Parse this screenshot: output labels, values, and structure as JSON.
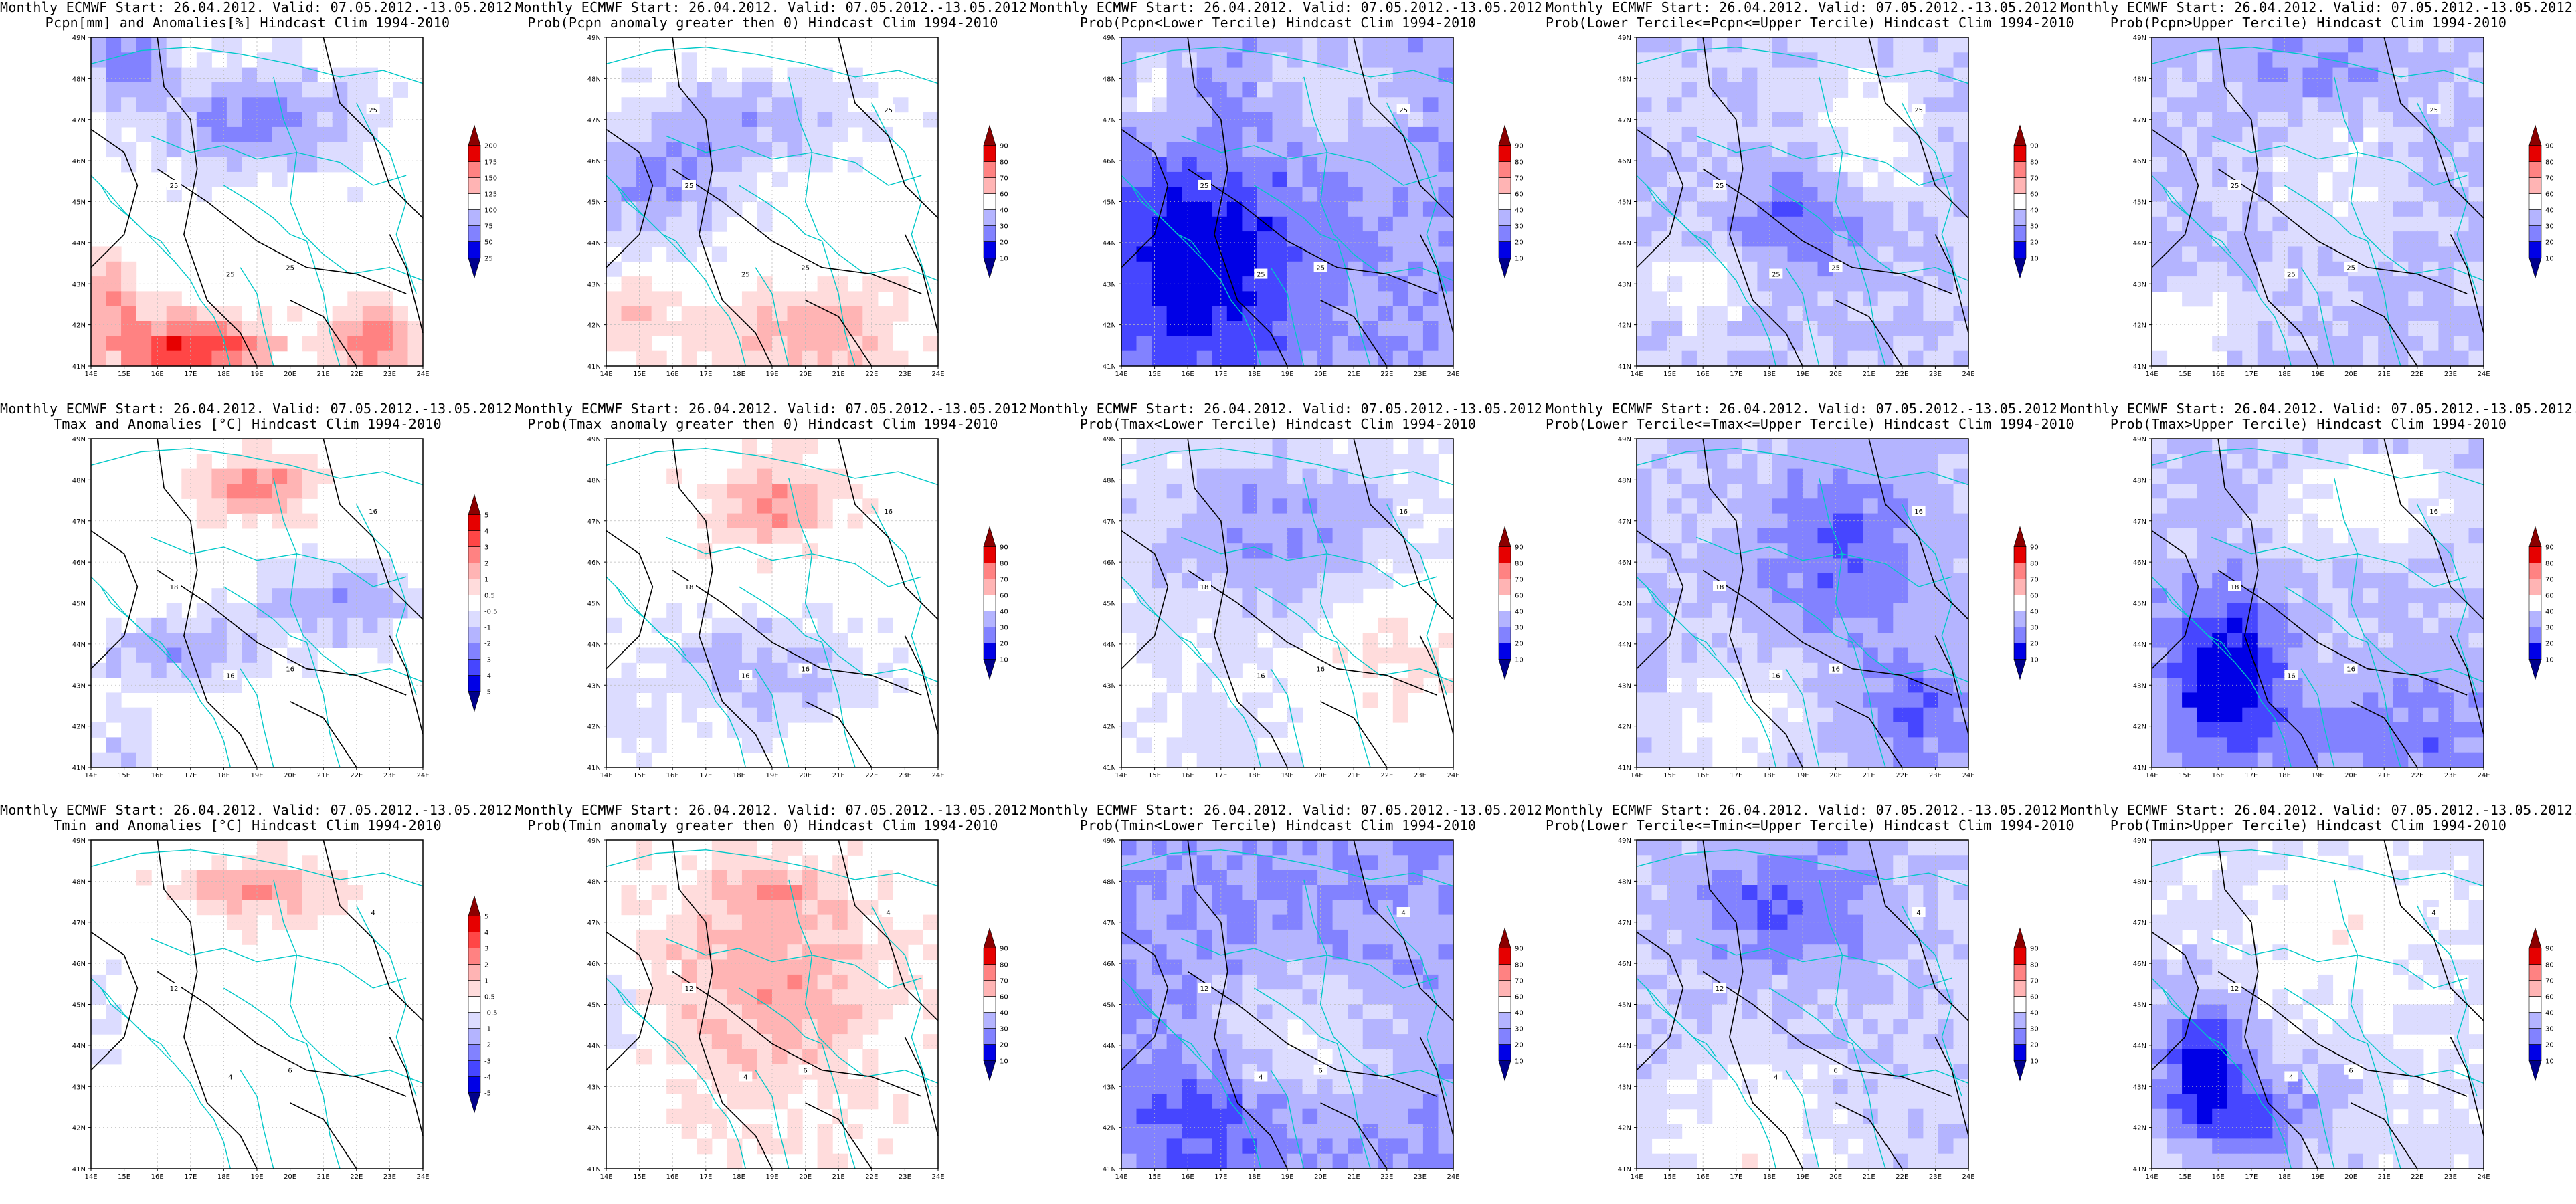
{
  "figure": {
    "x_ticks": [
      "14E",
      "15E",
      "16E",
      "17E",
      "18E",
      "19E",
      "20E",
      "21E",
      "22E",
      "23E",
      "24E"
    ],
    "y_ticks": [
      "41N",
      "42N",
      "43N",
      "44N",
      "45N",
      "46N",
      "47N",
      "48N",
      "49N"
    ],
    "colors": {
      "neg": [
        "#00008b",
        "#0000e6",
        "#4646ff",
        "#8282ff",
        "#b4b4ff",
        "#dcdcff"
      ],
      "pos": [
        "#ffdcdc",
        "#ffb4b4",
        "#ff8282",
        "#ff4646",
        "#e60000",
        "#8b0000"
      ],
      "coast": "#00c8c8",
      "contour": "#000000"
    }
  },
  "panels": [
    {
      "line1": "Monthly ECMWF Start: 26.04.2012. Valid: 07.05.2012.-13.05.2012.",
      "line2": "Pcpn[mm] and Anomalies[%] Hindcast Clim 1994-2010",
      "cb_labels": [
        "25",
        "50",
        "75",
        "100",
        "125",
        "150",
        "175",
        "200"
      ],
      "pattern": "precip-anom",
      "contour_labels": [
        "25",
        "25",
        "25",
        "25"
      ]
    },
    {
      "line1": "Monthly ECMWF Start: 26.04.2012. Valid: 07.05.2012.-13.05.2012.",
      "line2": "Prob(Pcpn anomaly greater then 0) Hindcast Clim 1994-2010",
      "cb_labels": [
        "10",
        "20",
        "30",
        "40",
        "60",
        "70",
        "80",
        "90"
      ],
      "pattern": "precip-pos",
      "contour_labels": [
        "25",
        "25",
        "25",
        "25"
      ]
    },
    {
      "line1": "Monthly ECMWF Start: 26.04.2012. Valid: 07.05.2012.-13.05.2012.",
      "line2": "Prob(Pcpn<Lower Tercile) Hindcast Clim 1994-2010",
      "cb_labels": [
        "10",
        "20",
        "30",
        "40",
        "60",
        "70",
        "80",
        "90"
      ],
      "pattern": "precip-lower",
      "contour_labels": [
        "25",
        "25",
        "25",
        "25"
      ]
    },
    {
      "line1": "Monthly ECMWF Start: 26.04.2012. Valid: 07.05.2012.-13.05.2012.",
      "line2": "Prob(Lower Tercile<=Pcpn<=Upper Tercile) Hindcast Clim 1994-2010",
      "cb_labels": [
        "10",
        "20",
        "30",
        "40",
        "60",
        "70",
        "80",
        "90"
      ],
      "pattern": "precip-mid",
      "contour_labels": [
        "25",
        "25",
        "25",
        "25"
      ]
    },
    {
      "line1": "Monthly ECMWF Start: 26.04.2012. Valid: 07.05.2012.-13.05.2012.",
      "line2": "Prob(Pcpn>Upper Tercile) Hindcast Clim 1994-2010",
      "cb_labels": [
        "10",
        "20",
        "30",
        "40",
        "60",
        "70",
        "80",
        "90"
      ],
      "pattern": "precip-upper",
      "contour_labels": [
        "25",
        "25",
        "25",
        "25"
      ]
    },
    {
      "line1": "Monthly ECMWF Start: 26.04.2012. Valid: 07.05.2012.-13.05.2012.",
      "line2": "Tmax and Anomalies [°C] Hindcast Clim 1994-2010",
      "cb_labels": [
        "-5",
        "-4",
        "-3",
        "-2",
        "-1",
        "-0.5",
        "0.5",
        "1",
        "2",
        "3",
        "4",
        "5"
      ],
      "pattern": "tmax-anom",
      "contour_labels": [
        "16",
        "16",
        "16",
        "18"
      ]
    },
    {
      "line1": "Monthly ECMWF Start: 26.04.2012. Valid: 07.05.2012.-13.05.2012.",
      "line2": "Prob(Tmax anomaly greater then 0) Hindcast Clim 1994-2010",
      "cb_labels": [
        "10",
        "20",
        "30",
        "40",
        "60",
        "70",
        "80",
        "90"
      ],
      "pattern": "tmax-pos",
      "contour_labels": [
        "16",
        "16",
        "16",
        "18"
      ]
    },
    {
      "line1": "Monthly ECMWF Start: 26.04.2012. Valid: 07.05.2012.-13.05.2012.",
      "line2": "Prob(Tmax<Lower Tercile) Hindcast Clim 1994-2010",
      "cb_labels": [
        "10",
        "20",
        "30",
        "40",
        "60",
        "70",
        "80",
        "90"
      ],
      "pattern": "tmax-lower",
      "contour_labels": [
        "16",
        "16",
        "16",
        "18"
      ]
    },
    {
      "line1": "Monthly ECMWF Start: 26.04.2012. Valid: 07.05.2012.-13.05.2012.",
      "line2": "Prob(Lower Tercile<=Tmax<=Upper Tercile) Hindcast Clim 1994-2010",
      "cb_labels": [
        "10",
        "20",
        "30",
        "40",
        "60",
        "70",
        "80",
        "90"
      ],
      "pattern": "tmax-mid",
      "contour_labels": [
        "16",
        "16",
        "16",
        "18"
      ]
    },
    {
      "line1": "Monthly ECMWF Start: 26.04.2012. Valid: 07.05.2012.-13.05.2012.",
      "line2": "Prob(Tmax>Upper Tercile) Hindcast Clim 1994-2010",
      "cb_labels": [
        "10",
        "20",
        "30",
        "40",
        "60",
        "70",
        "80",
        "90"
      ],
      "pattern": "tmax-upper",
      "contour_labels": [
        "16",
        "16",
        "16",
        "18"
      ]
    },
    {
      "line1": "Monthly ECMWF Start: 26.04.2012. Valid: 07.05.2012.-13.05.2012.",
      "line2": "Tmin and Anomalies [°C] Hindcast Clim 1994-2010",
      "cb_labels": [
        "-5",
        "-4",
        "-3",
        "-2",
        "-1",
        "-0.5",
        "0.5",
        "1",
        "2",
        "3",
        "4",
        "5"
      ],
      "pattern": "tmin-anom",
      "contour_labels": [
        "4",
        "4",
        "6",
        "12"
      ]
    },
    {
      "line1": "Monthly ECMWF Start: 26.04.2012. Valid: 07.05.2012.-13.05.2012.",
      "line2": "Prob(Tmin anomaly greater then 0) Hindcast Clim 1994-2010",
      "cb_labels": [
        "10",
        "20",
        "30",
        "40",
        "60",
        "70",
        "80",
        "90"
      ],
      "pattern": "tmin-pos",
      "contour_labels": [
        "4",
        "4",
        "6",
        "12"
      ]
    },
    {
      "line1": "Monthly ECMWF Start: 26.04.2012. Valid: 07.05.2012.-13.05.2012.",
      "line2": "Prob(Tmin<Lower Tercile) Hindcast Clim 1994-2010",
      "cb_labels": [
        "10",
        "20",
        "30",
        "40",
        "60",
        "70",
        "80",
        "90"
      ],
      "pattern": "tmin-lower",
      "contour_labels": [
        "4",
        "4",
        "6",
        "12"
      ]
    },
    {
      "line1": "Monthly ECMWF Start: 26.04.2012. Valid: 07.05.2012.-13.05.2012.",
      "line2": "Prob(Lower Tercile<=Tmin<=Upper Tercile) Hindcast Clim 1994-2010",
      "cb_labels": [
        "10",
        "20",
        "30",
        "40",
        "60",
        "70",
        "80",
        "90"
      ],
      "pattern": "tmin-mid",
      "contour_labels": [
        "4",
        "4",
        "6",
        "12"
      ]
    },
    {
      "line1": "Monthly ECMWF Start: 26.04.2012. Valid: 07.05.2012.-13.05.2012.",
      "line2": "Prob(Tmin>Upper Tercile) Hindcast Clim 1994-2010",
      "cb_labels": [
        "10",
        "20",
        "30",
        "40",
        "60",
        "70",
        "80",
        "90"
      ],
      "pattern": "tmin-upper",
      "contour_labels": [
        "4",
        "4",
        "6",
        "12"
      ]
    }
  ],
  "chart_data": [
    {
      "type": "heatmap",
      "title": "Pcpn[mm] and Anomalies[%]",
      "x_ticks": [
        "14E",
        "24E"
      ],
      "y_ticks": [
        "41N",
        "49N"
      ],
      "legend_levels": [
        25,
        50,
        75,
        100,
        125,
        150,
        175,
        200
      ]
    },
    {
      "type": "heatmap",
      "title": "Prob(Pcpn anomaly greater then 0)",
      "legend_levels": [
        10,
        20,
        30,
        40,
        60,
        70,
        80,
        90
      ]
    },
    {
      "type": "heatmap",
      "title": "Prob(Pcpn<Lower Tercile)",
      "legend_levels": [
        10,
        20,
        30,
        40,
        60,
        70,
        80,
        90
      ]
    },
    {
      "type": "heatmap",
      "title": "Prob(Lower Tercile<=Pcpn<=Upper Tercile)",
      "legend_levels": [
        10,
        20,
        30,
        40,
        60,
        70,
        80,
        90
      ]
    },
    {
      "type": "heatmap",
      "title": "Prob(Pcpn>Upper Tercile)",
      "legend_levels": [
        10,
        20,
        30,
        40,
        60,
        70,
        80,
        90
      ]
    },
    {
      "type": "heatmap",
      "title": "Tmax and Anomalies [°C]",
      "legend_levels": [
        -5,
        -4,
        -3,
        -2,
        -1,
        -0.5,
        0.5,
        1,
        2,
        3,
        4,
        5
      ]
    },
    {
      "type": "heatmap",
      "title": "Prob(Tmax anomaly greater then 0)",
      "legend_levels": [
        10,
        20,
        30,
        40,
        60,
        70,
        80,
        90
      ]
    },
    {
      "type": "heatmap",
      "title": "Prob(Tmax<Lower Tercile)",
      "legend_levels": [
        10,
        20,
        30,
        40,
        60,
        70,
        80,
        90
      ]
    },
    {
      "type": "heatmap",
      "title": "Prob(Lower Tercile<=Tmax<=Upper Tercile)",
      "legend_levels": [
        10,
        20,
        30,
        40,
        60,
        70,
        80,
        90
      ]
    },
    {
      "type": "heatmap",
      "title": "Prob(Tmax>Upper Tercile)",
      "legend_levels": [
        10,
        20,
        30,
        40,
        60,
        70,
        80,
        90
      ]
    },
    {
      "type": "heatmap",
      "title": "Tmin and Anomalies [°C]",
      "legend_levels": [
        -5,
        -4,
        -3,
        -2,
        -1,
        -0.5,
        0.5,
        1,
        2,
        3,
        4,
        5
      ]
    },
    {
      "type": "heatmap",
      "title": "Prob(Tmin anomaly greater then 0)",
      "legend_levels": [
        10,
        20,
        30,
        40,
        60,
        70,
        80,
        90
      ]
    },
    {
      "type": "heatmap",
      "title": "Prob(Tmin<Lower Tercile)",
      "legend_levels": [
        10,
        20,
        30,
        40,
        60,
        70,
        80,
        90
      ]
    },
    {
      "type": "heatmap",
      "title": "Prob(Lower Tercile<=Tmin<=Upper Tercile)",
      "legend_levels": [
        10,
        20,
        30,
        40,
        60,
        70,
        80,
        90
      ]
    },
    {
      "type": "heatmap",
      "title": "Prob(Tmin>Upper Tercile)",
      "legend_levels": [
        10,
        20,
        30,
        40,
        60,
        70,
        80,
        90
      ]
    }
  ]
}
